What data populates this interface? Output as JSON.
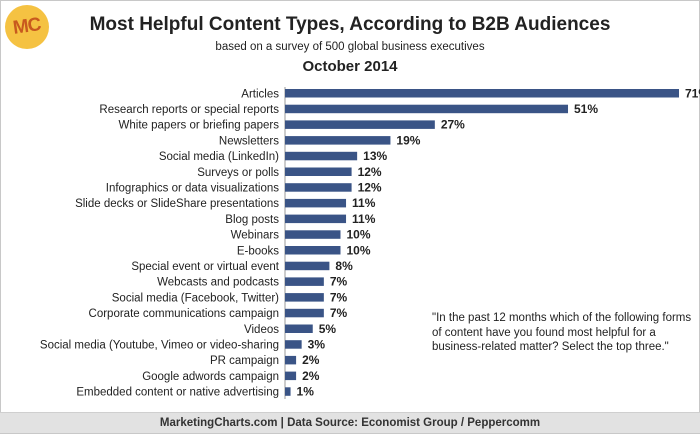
{
  "logo": {
    "text": "MC",
    "color": "#f5c242"
  },
  "header": {
    "title": "Most Helpful Content Types, According to B2B Audiences",
    "subtitle": "based on a survey of 500 global business executives",
    "date": "October 2014"
  },
  "quote": "\"In the past 12 months which of the following forms of content have you found most helpful for a business-related matter? Select the top three.\"",
  "footer": "MarketingCharts.com | Data Source: Economist Group / Peppercomm",
  "chart_data": {
    "type": "bar",
    "orientation": "horizontal",
    "bar_color": "#3a5486",
    "value_suffix": "%",
    "xlim": [
      0,
      71
    ],
    "categories": [
      "Articles",
      "Research reports or special reports",
      "White papers or briefing papers",
      "Newsletters",
      "Social media (LinkedIn)",
      "Surveys or polls",
      "Infographics or data visualizations",
      "Slide decks or SlideShare presentations",
      "Blog posts",
      "Webinars",
      "E-books",
      "Special event or virtual event",
      "Webcasts and podcasts",
      "Social media (Facebook, Twitter)",
      "Corporate communications campaign",
      "Videos",
      "Social media (Youtube, Vimeo or video-sharing",
      "PR campaign",
      "Google adwords campaign",
      "Embedded content or native advertising"
    ],
    "values": [
      71,
      51,
      27,
      19,
      13,
      12,
      12,
      11,
      11,
      10,
      10,
      8,
      7,
      7,
      7,
      5,
      3,
      2,
      2,
      1
    ],
    "grid": false,
    "legend": "none"
  }
}
